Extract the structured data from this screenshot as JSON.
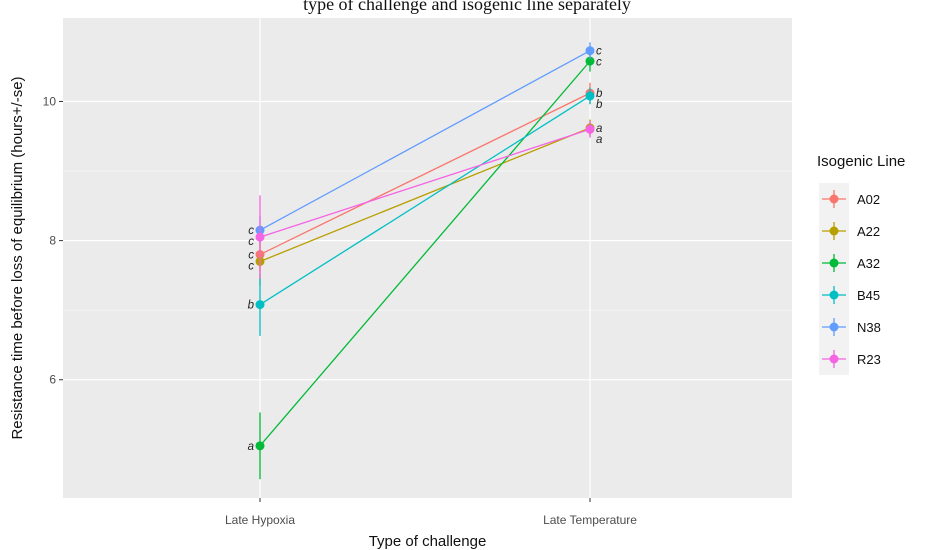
{
  "header": {
    "title_fragment": "type of challenge and isogenic line separately"
  },
  "chart_data": {
    "type": "line",
    "xlabel": "Type of challenge",
    "ylabel": "Resistance time before loss of equilibrium (hours+/-se)",
    "categories": [
      "Late Hypoxia",
      "Late Temperature"
    ],
    "y_ticks": [
      6,
      8,
      10
    ],
    "ylim": [
      4.3,
      11.2
    ],
    "grid": true,
    "legend_title": "Isogenic Line",
    "legend_position": "right",
    "series": [
      {
        "name": "A02",
        "color": "#F8766D",
        "values": [
          7.8,
          10.12
        ],
        "se": [
          0.25,
          0.15
        ],
        "letters": [
          "c",
          "b"
        ]
      },
      {
        "name": "A22",
        "color": "#B79F00",
        "values": [
          7.7,
          9.62
        ],
        "se": [
          0.35,
          0.12
        ],
        "letters": [
          "c",
          "a"
        ]
      },
      {
        "name": "A32",
        "color": "#00BA38",
        "values": [
          5.05,
          10.58
        ],
        "se": [
          0.48,
          0.15
        ],
        "letters": [
          "a",
          "c"
        ]
      },
      {
        "name": "B45",
        "color": "#00BFC4",
        "values": [
          7.08,
          10.08
        ],
        "se": [
          0.45,
          0.12
        ],
        "letters": [
          "b",
          "b"
        ]
      },
      {
        "name": "N38",
        "color": "#619CFF",
        "values": [
          8.15,
          10.73
        ],
        "se": [
          0.2,
          0.12
        ],
        "letters": [
          "c",
          "c"
        ]
      },
      {
        "name": "R23",
        "color": "#F564E3",
        "values": [
          8.05,
          9.6
        ],
        "se": [
          0.6,
          0.12
        ],
        "letters": [
          "c",
          "a"
        ]
      }
    ]
  }
}
